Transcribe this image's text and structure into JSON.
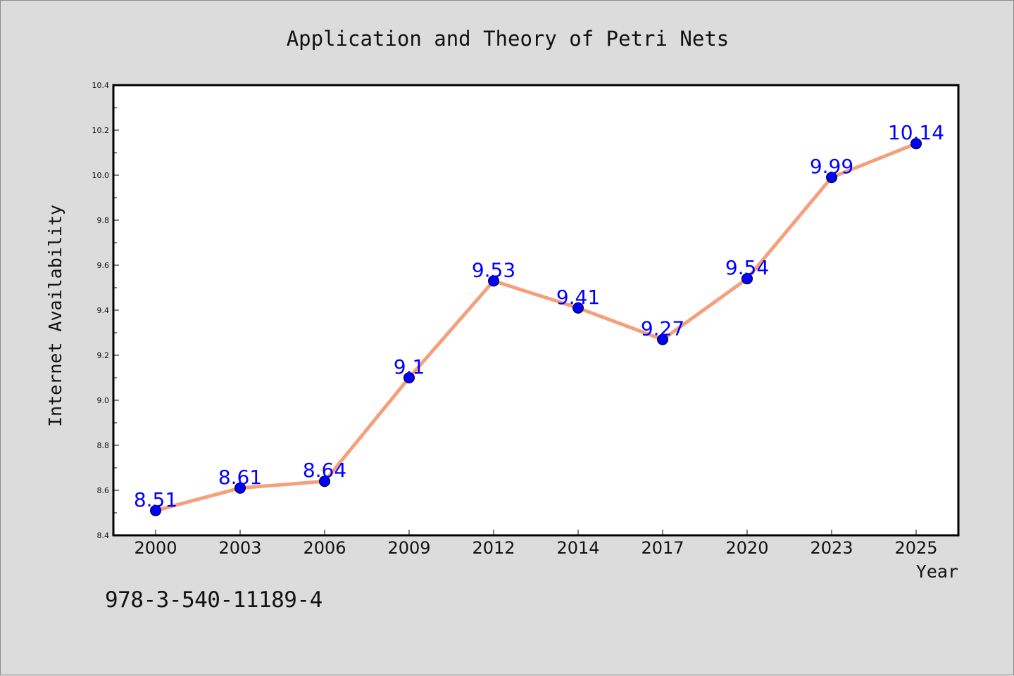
{
  "chart_data": {
    "type": "line",
    "title": "Application and Theory of Petri Nets",
    "xlabel": "Year",
    "ylabel": "Internet Availability",
    "categories": [
      "2000",
      "2003",
      "2006",
      "2009",
      "2012",
      "2014",
      "2017",
      "2020",
      "2023",
      "2025"
    ],
    "series": [
      {
        "values": [
          8.51,
          8.61,
          8.64,
          9.1,
          9.53,
          9.41,
          9.27,
          9.54,
          9.99,
          10.14
        ]
      }
    ],
    "data_labels": [
      "8.51",
      "8.61",
      "8.64",
      "9.1",
      "9.53",
      "9.41",
      "9.27",
      "9.54",
      "9.99",
      "10.14"
    ],
    "ylim": [
      8.4,
      10.4
    ],
    "yticks": [
      "8.4",
      "8.6",
      "8.8",
      "9.0",
      "9.2",
      "9.4",
      "9.6",
      "9.8",
      "10.0",
      "10.2",
      "10.4"
    ],
    "grid": false,
    "legend": "none",
    "colors": {
      "line": "#f4a07c",
      "marker": "#0000ff",
      "label": "#0000ff",
      "background": "#dcdcdc",
      "plot_area": "#ffffff"
    }
  },
  "footer": {
    "isbn": "978-3-540-11189-4"
  }
}
